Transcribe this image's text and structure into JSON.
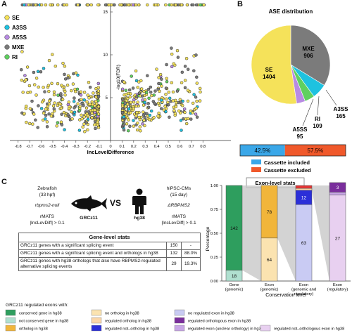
{
  "panels": {
    "a": "A",
    "b": "B",
    "c": "C"
  },
  "colors": {
    "SE": "#f5e25a",
    "A3SS": "#1ec2e0",
    "A5SS": "#b88be3",
    "MXE": "#7b7b7b",
    "RI": "#5fd05f",
    "included": "#3aa7e8",
    "excluded": "#f0592b"
  },
  "volcano": {
    "xlabel": "IncLevelDifference",
    "ylabel": "-log10(FDR)",
    "xticks": [
      "-0.8",
      "-0.7",
      "-0.6",
      "-0.5",
      "-0.4",
      "-0.3",
      "-0.2",
      "-0.1",
      "0",
      "0.1",
      "0.2",
      "0.3",
      "0.4",
      "0.5",
      "0.6",
      "0.7",
      "0.8"
    ],
    "yticks": [
      "5",
      "10",
      "15"
    ],
    "legend": [
      {
        "label": "SE"
      },
      {
        "label": "A3SS"
      },
      {
        "label": "A5SS"
      },
      {
        "label": "MXE"
      },
      {
        "label": "RI"
      }
    ]
  },
  "chart_data": [
    {
      "type": "pie",
      "title": "ASE distribution",
      "slices": [
        {
          "label": "SE",
          "value": 1404
        },
        {
          "label": "MXE",
          "value": 906
        },
        {
          "label": "A3SS",
          "value": 165
        },
        {
          "label": "RI",
          "value": 109
        },
        {
          "label": "A5SS",
          "value": 95
        }
      ],
      "cassette_bar": {
        "included": 42.5,
        "excluded": 57.5,
        "included_label": "42.5%",
        "excluded_label": "57.5%"
      },
      "cassette_legend": [
        "Cassette included",
        "Cassette excluded"
      ]
    },
    {
      "type": "bar",
      "title": "Exon-level stats",
      "ylabel": "Percentage",
      "xlabel": "Conservation level",
      "yticks": [
        "0.00",
        "0.25",
        "0.50",
        "0.75",
        "1.00"
      ],
      "categories": [
        [
          "Gene",
          "(genomic)"
        ],
        [
          "Exon",
          "(genomic)"
        ],
        [
          "Exon",
          "(genomic and",
          "regulatory)"
        ],
        [
          "Exon",
          "(regulatory)"
        ]
      ],
      "stacks": [
        [
          {
            "value": 18,
            "frac": 0.113,
            "color": "#b0e0d0",
            "label": "18"
          },
          {
            "value": 142,
            "frac": 0.887,
            "color": "#2e9e5e",
            "label": "142"
          }
        ],
        [
          {
            "value": 64,
            "frac": 0.45,
            "color": "#fbe3b0",
            "label": "64"
          },
          {
            "value": 78,
            "frac": 0.55,
            "color": "#f1b53a",
            "label": "78"
          }
        ],
        [
          {
            "value": 63,
            "frac": 0.8,
            "color": "#c9cbf3",
            "label": "63"
          },
          {
            "value": 12,
            "frac": 0.15,
            "color": "#2b2fd8",
            "label": "12"
          },
          {
            "value": 2,
            "frac": 0.02,
            "color": "#fbd6a8",
            "label": ""
          },
          {
            "value": 3,
            "frac": 0.03,
            "color": "#e33434",
            "label": ""
          }
        ],
        [
          {
            "value": 27,
            "frac": 0.9,
            "color": "#e8d0f0",
            "label": "27"
          },
          {
            "value": 1,
            "frac": 0.03,
            "color": "#c8a6e6",
            "label": ""
          },
          {
            "value": 3,
            "frac": 0.1,
            "color": "#7a2e9c",
            "label": "3"
          }
        ]
      ]
    }
  ],
  "schematic": {
    "zebrafish_title": "Zebrafish",
    "zebrafish_stage": "(33 hpf)",
    "zebrafish_model": "rbpms2-null",
    "method": "rMATS",
    "threshold": "|IncLevDiff| > 0.1",
    "genome_zf": "GRCz11",
    "vs": "VS",
    "human_title": "hiPSC-CMs",
    "human_stage": "(15 day)",
    "human_model": "ΔRBPMS2",
    "genome_hs": "hg38"
  },
  "gene_table": {
    "title": "Gene-level stats",
    "rows": [
      {
        "text": "GRCz11 genes with a significant splicing event",
        "n": "150",
        "pct": "-"
      },
      {
        "text": "GRCz11 genes with a significant splicing event and orthologs in hg38",
        "n": "132",
        "pct": "88.0%"
      },
      {
        "text": "GRCz11 genes with hg38 orthologs that also have RBPMS2-regulated alternative splicing events",
        "n": "29",
        "pct": "19.3%"
      }
    ]
  },
  "bottom_legend": {
    "title": "GRCz11 regulated exons with:",
    "items": [
      {
        "label": "conserved gene in hg38",
        "color": "#2e9e5e"
      },
      {
        "label": "not conserved gene in hg38",
        "color": "#b0e0d0"
      },
      {
        "label": "ortholog in hg38",
        "color": "#f1b53a"
      },
      {
        "label": "no ortholog in hg38",
        "color": "#fbe3b0"
      },
      {
        "label": "regulated ortholog in hg38",
        "color": "#fbd6a8"
      },
      {
        "label": "regulated not–ortholog in hg38",
        "color": "#2b2fd8"
      },
      {
        "label": "no regulated exon in hg38",
        "color": "#c9cbf3"
      },
      {
        "label": "regulated orthologous exon in hg38",
        "color": "#7a2e9c"
      },
      {
        "label": "regulated exon (unclear orthology) in hg38",
        "color": "#c8a6e6"
      },
      {
        "label": "regulated not–orthologous exon in hg38",
        "color": "#e8d0f0"
      }
    ]
  }
}
